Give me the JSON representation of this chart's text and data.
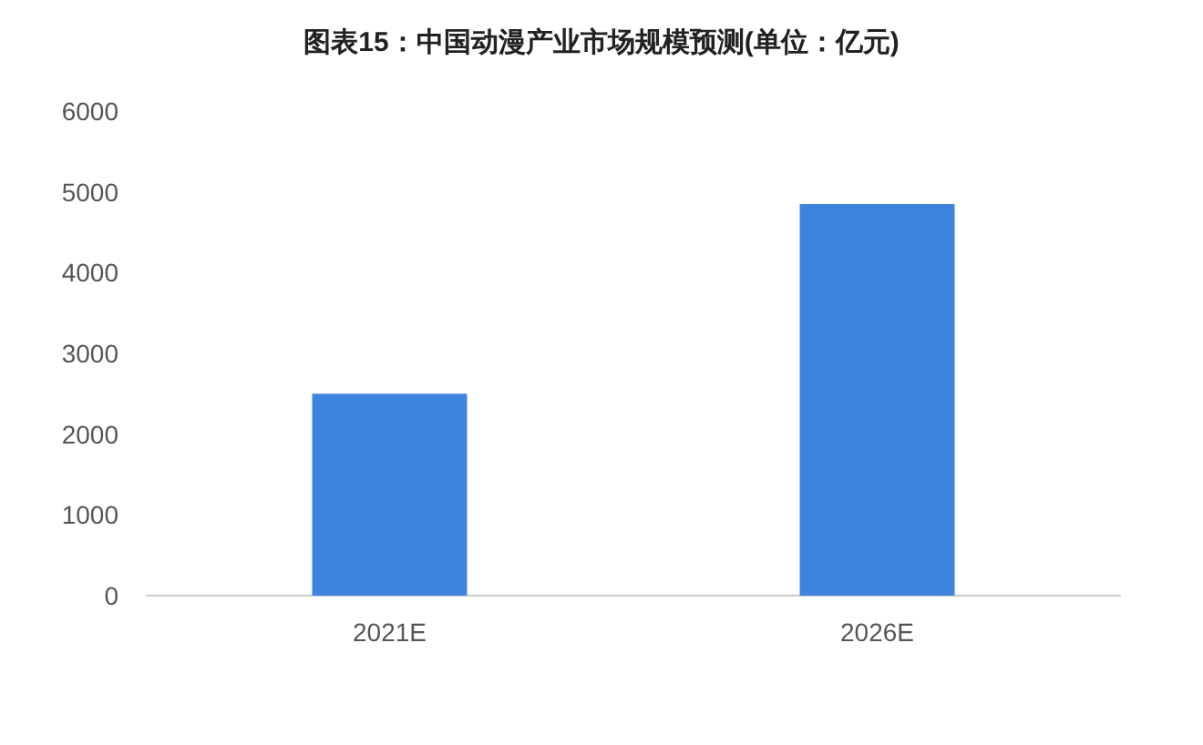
{
  "chart_data": {
    "type": "bar",
    "title": "图表15：中国动漫产业市场规模预测(单位：亿元)",
    "categories": [
      "2021E",
      "2026E"
    ],
    "series": [
      {
        "color": "#3f83e0",
        "values": [
          2500,
          4850
        ]
      }
    ],
    "ylim": [
      0,
      6000
    ],
    "yticks": [
      0,
      1000,
      2000,
      3000,
      4000,
      5000,
      6000
    ],
    "grid": false
  }
}
